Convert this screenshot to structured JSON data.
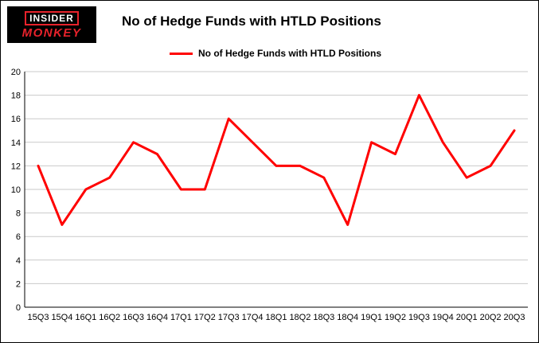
{
  "logo": {
    "line1": "INSIDER",
    "line2": "MONKEY"
  },
  "header": {
    "title": "No of Hedge Funds with HTLD Positions"
  },
  "legend": {
    "label": "No of Hedge Funds with HTLD Positions",
    "color": "#ff0000"
  },
  "chart_data": {
    "type": "line",
    "title": "No of Hedge Funds with HTLD Positions",
    "categories": [
      "15Q3",
      "15Q4",
      "16Q1",
      "16Q2",
      "16Q3",
      "16Q4",
      "17Q1",
      "17Q2",
      "17Q3",
      "17Q4",
      "18Q1",
      "18Q2",
      "18Q3",
      "18Q4",
      "19Q1",
      "19Q2",
      "19Q3",
      "19Q4",
      "20Q1",
      "20Q2",
      "20Q3"
    ],
    "series": [
      {
        "name": "No of Hedge Funds with HTLD Positions",
        "values": [
          12,
          7,
          10,
          11,
          14,
          13,
          10,
          10,
          16,
          14,
          12,
          12,
          11,
          7,
          14,
          13,
          18,
          14,
          11,
          12,
          15
        ]
      }
    ],
    "xlabel": "",
    "ylabel": "",
    "ylim": [
      0,
      20
    ],
    "ytick_step": 2,
    "grid": true,
    "legend_position": "top",
    "line_color": "#ff0000",
    "grid_color": "#c9c9c9",
    "axis_color": "#000000"
  }
}
